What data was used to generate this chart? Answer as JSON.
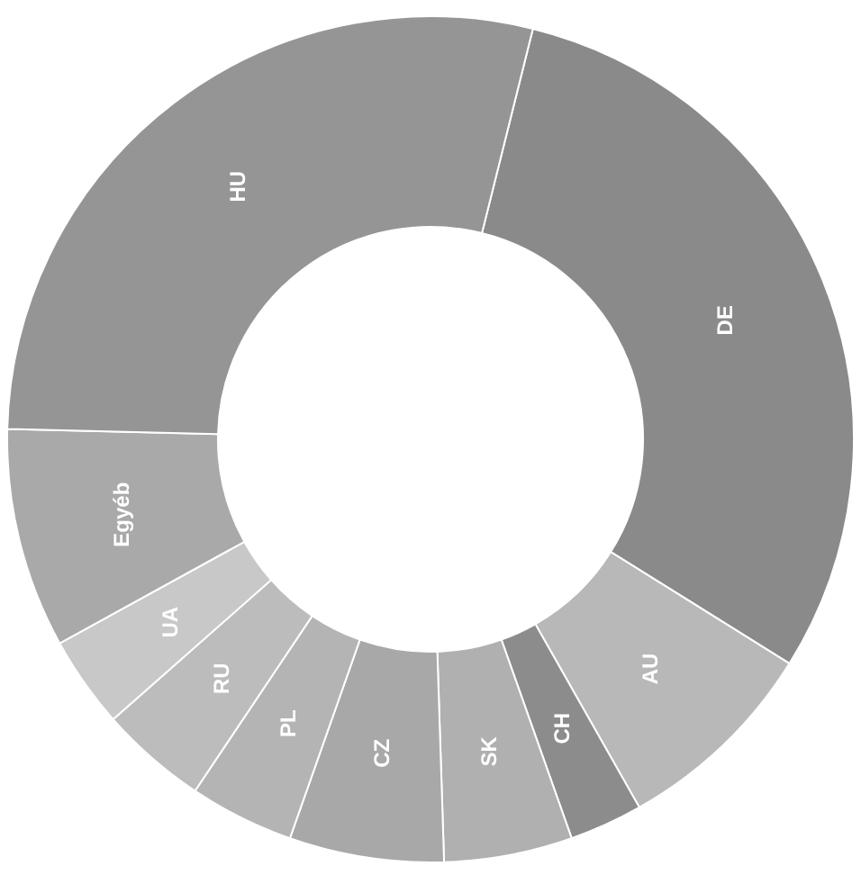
{
  "chart_data": {
    "type": "donut",
    "categories": [
      "DE",
      "AU",
      "CH",
      "SK",
      "CZ",
      "PL",
      "RU",
      "UA",
      "Egyéb",
      "HU"
    ],
    "values": [
      30.0,
      7.9,
      2.8,
      4.9,
      5.9,
      4.0,
      4.1,
      3.5,
      8.4,
      28.5
    ],
    "colors": [
      "#8a8a8a",
      "#b8b8b8",
      "#8c8c8c",
      "#b0b0b0",
      "#a8a8a8",
      "#b4b4b4",
      "#bcbcbc",
      "#c8c8c8",
      "#a9a9a9",
      "#959595"
    ]
  }
}
